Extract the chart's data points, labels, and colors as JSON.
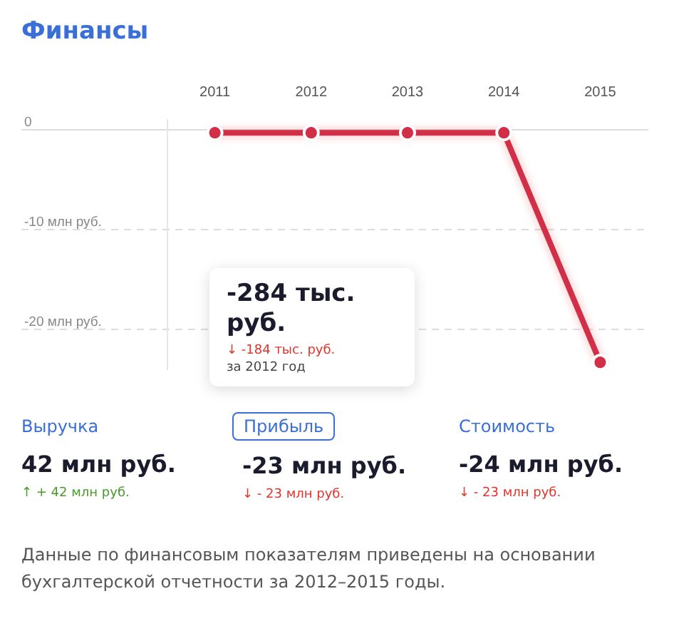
{
  "chart_data": {
    "type": "line",
    "title": "Финансы",
    "categories": [
      "2011",
      "2012",
      "2013",
      "2014",
      "2015"
    ],
    "series": [
      {
        "color": "#d12f47",
        "values": [
          -0.3,
          -0.3,
          -0.3,
          -0.3,
          -23.3
        ]
      }
    ],
    "ylim": [
      -24,
      1
    ],
    "yticks": [
      {
        "value": 0,
        "label": "0"
      },
      {
        "value": -10,
        "label": "-10 млн руб."
      },
      {
        "value": -20,
        "label": "-20 млн руб."
      }
    ],
    "grid": "y",
    "marker": "circle",
    "line_style": "solid",
    "annotations": [
      "-284 тыс. руб.\n↓ -184 тыс. руб.\nза 2012 год",
      "Выручка",
      "42 млн руб.",
      "↑ + 42 млн руб.",
      "Прибыль",
      "-23 млн руб.",
      "↓ - 23 млн руб.",
      "Стоимость",
      "-24 млн руб.",
      "↓ - 23 млн руб.",
      "Данные по финансовым показателям приведены на основании бухгалтерской отчетности за 2012–2015 годы."
    ]
  }
}
